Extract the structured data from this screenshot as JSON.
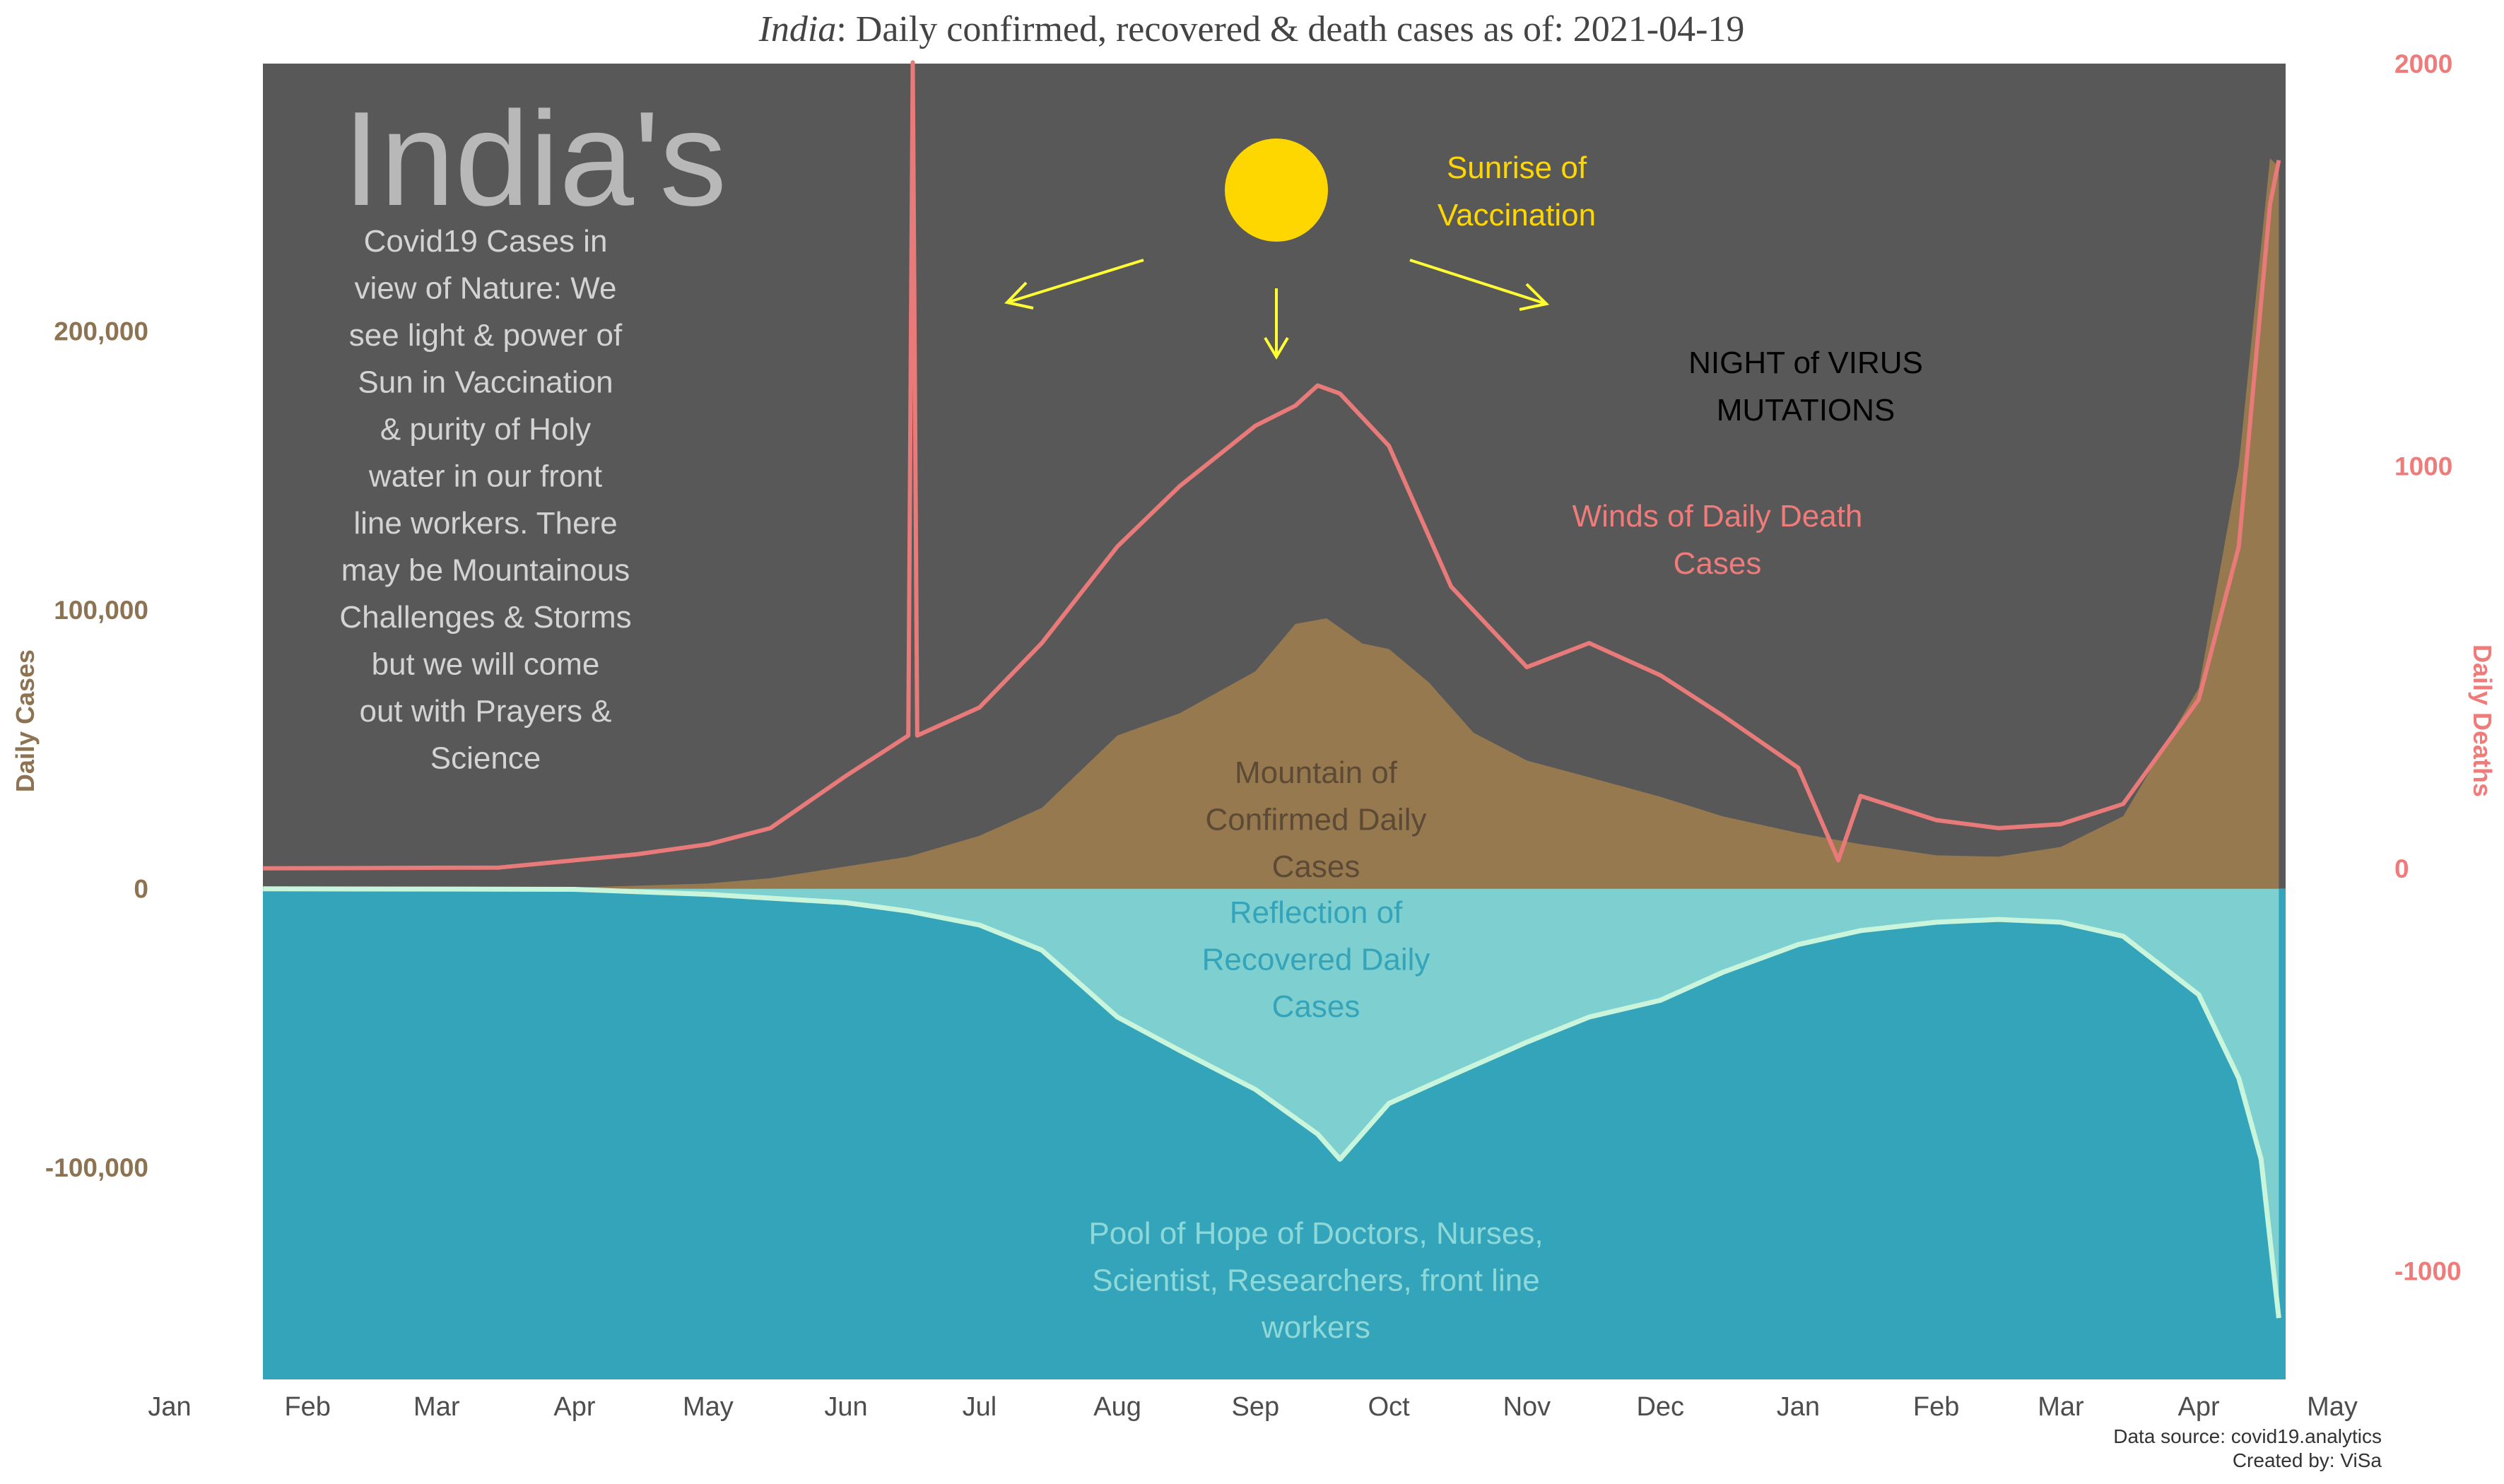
{
  "title": {
    "country": "India",
    "rest": ": Daily confirmed, recovered & death cases as of: 2021-04-19"
  },
  "chart_data": {
    "type": "area",
    "title": "India: Daily confirmed, recovered & death cases as of: 2021-04-19",
    "ylabel": "Daily Cases",
    "ylabel_right": "Daily Deaths",
    "y_ticks": [
      "200,000",
      "100,000",
      "0",
      "-100,000"
    ],
    "y_tick_values": [
      200000,
      100000,
      0,
      -100000
    ],
    "y2_ticks": [
      "2000",
      "1000",
      "0",
      "-1000"
    ],
    "y2_tick_values": [
      2000,
      1000,
      0,
      -1000
    ],
    "x_ticks": [
      "Jan",
      "Feb",
      "Mar",
      "Apr",
      "May",
      "Jun",
      "Jul",
      "Aug",
      "Sep",
      "Oct",
      "Nov",
      "Dec",
      "Jan",
      "Feb",
      "Mar",
      "Apr",
      "May"
    ],
    "x_tick_dates": [
      "2020-01-01",
      "2020-02-01",
      "2020-03-01",
      "2020-04-01",
      "2020-05-01",
      "2020-06-01",
      "2020-07-01",
      "2020-08-01",
      "2020-09-01",
      "2020-10-01",
      "2020-11-01",
      "2020-12-01",
      "2021-01-01",
      "2021-02-01",
      "2021-03-01",
      "2021-04-01",
      "2021-05-01"
    ],
    "x_range": [
      "2020-01-01",
      "2021-05-01"
    ],
    "ylim": [
      -176000,
      296000
    ],
    "y2lim": [
      -1270,
      2000
    ],
    "series": [
      {
        "name": "Confirmed",
        "axis": "left",
        "color": "#97794f",
        "points": [
          [
            "2020-01-22",
            0
          ],
          [
            "2020-03-01",
            0
          ],
          [
            "2020-04-01",
            500
          ],
          [
            "2020-04-15",
            1100
          ],
          [
            "2020-05-01",
            1900
          ],
          [
            "2020-05-15",
            3800
          ],
          [
            "2020-06-01",
            8000
          ],
          [
            "2020-06-15",
            11500
          ],
          [
            "2020-07-01",
            19000
          ],
          [
            "2020-07-15",
            29000
          ],
          [
            "2020-08-01",
            55000
          ],
          [
            "2020-08-15",
            63000
          ],
          [
            "2020-09-01",
            78000
          ],
          [
            "2020-09-10",
            95000
          ],
          [
            "2020-09-17",
            97000
          ],
          [
            "2020-09-25",
            88000
          ],
          [
            "2020-10-01",
            86000
          ],
          [
            "2020-10-10",
            74000
          ],
          [
            "2020-10-20",
            56000
          ],
          [
            "2020-11-01",
            46000
          ],
          [
            "2020-11-15",
            40000
          ],
          [
            "2020-12-01",
            33000
          ],
          [
            "2020-12-15",
            26000
          ],
          [
            "2021-01-01",
            20000
          ],
          [
            "2021-01-15",
            16000
          ],
          [
            "2021-02-01",
            12000
          ],
          [
            "2021-02-15",
            11500
          ],
          [
            "2021-03-01",
            15000
          ],
          [
            "2021-03-15",
            26000
          ],
          [
            "2021-04-01",
            72000
          ],
          [
            "2021-04-10",
            152000
          ],
          [
            "2021-04-17",
            262000
          ],
          [
            "2021-04-19",
            259000
          ]
        ]
      },
      {
        "name": "Recovered",
        "axis": "left",
        "color": "#7ecfcf",
        "points": [
          [
            "2020-01-22",
            0
          ],
          [
            "2020-04-01",
            -200
          ],
          [
            "2020-05-01",
            -2000
          ],
          [
            "2020-06-01",
            -5000
          ],
          [
            "2020-06-15",
            -8000
          ],
          [
            "2020-07-01",
            -13000
          ],
          [
            "2020-07-15",
            -22000
          ],
          [
            "2020-08-01",
            -46000
          ],
          [
            "2020-08-15",
            -58000
          ],
          [
            "2020-09-01",
            -72000
          ],
          [
            "2020-09-15",
            -88000
          ],
          [
            "2020-09-20",
            -97000
          ],
          [
            "2020-10-01",
            -77000
          ],
          [
            "2020-10-15",
            -67000
          ],
          [
            "2020-11-01",
            -55000
          ],
          [
            "2020-11-15",
            -46000
          ],
          [
            "2020-12-01",
            -40000
          ],
          [
            "2020-12-15",
            -30000
          ],
          [
            "2021-01-01",
            -20000
          ],
          [
            "2021-01-15",
            -15000
          ],
          [
            "2021-02-01",
            -12000
          ],
          [
            "2021-02-15",
            -11000
          ],
          [
            "2021-03-01",
            -12000
          ],
          [
            "2021-03-15",
            -17000
          ],
          [
            "2021-04-01",
            -38000
          ],
          [
            "2021-04-10",
            -68000
          ],
          [
            "2021-04-15",
            -97000
          ],
          [
            "2021-04-19",
            -154000
          ]
        ]
      },
      {
        "name": "Deaths",
        "axis": "right",
        "color": "#e87a7a",
        "points": [
          [
            "2020-01-22",
            0
          ],
          [
            "2020-03-15",
            2
          ],
          [
            "2020-04-01",
            20
          ],
          [
            "2020-04-15",
            35
          ],
          [
            "2020-05-01",
            60
          ],
          [
            "2020-05-15",
            100
          ],
          [
            "2020-06-01",
            230
          ],
          [
            "2020-06-15",
            330
          ],
          [
            "2020-06-16",
            2003
          ],
          [
            "2020-06-17",
            330
          ],
          [
            "2020-07-01",
            400
          ],
          [
            "2020-07-15",
            560
          ],
          [
            "2020-08-01",
            800
          ],
          [
            "2020-08-15",
            950
          ],
          [
            "2020-09-01",
            1100
          ],
          [
            "2020-09-10",
            1150
          ],
          [
            "2020-09-15",
            1200
          ],
          [
            "2020-09-20",
            1180
          ],
          [
            "2020-10-01",
            1050
          ],
          [
            "2020-10-15",
            700
          ],
          [
            "2020-11-01",
            500
          ],
          [
            "2020-11-15",
            560
          ],
          [
            "2020-12-01",
            480
          ],
          [
            "2020-12-15",
            380
          ],
          [
            "2021-01-01",
            250
          ],
          [
            "2021-01-10",
            20
          ],
          [
            "2021-01-15",
            180
          ],
          [
            "2021-02-01",
            120
          ],
          [
            "2021-02-15",
            100
          ],
          [
            "2021-03-01",
            110
          ],
          [
            "2021-03-15",
            160
          ],
          [
            "2021-04-01",
            420
          ],
          [
            "2021-04-10",
            800
          ],
          [
            "2021-04-17",
            1650
          ],
          [
            "2021-04-19",
            1760
          ]
        ]
      }
    ],
    "annotations": {
      "big_title": "India's",
      "left_text": [
        "Covid19 Cases in",
        "view of Nature: We",
        "see light & power of",
        "Sun in Vaccination",
        "& purity of Holy",
        "water in our front",
        "line workers. There",
        "may be Mountainous",
        "Challenges & Storms",
        "but we will come",
        "out with Prayers &",
        "Science"
      ],
      "sunrise": [
        "Sunrise of",
        "Vaccination"
      ],
      "night": [
        "NIGHT of VIRUS",
        "MUTATIONS"
      ],
      "winds": [
        "Winds of Daily Death",
        "Cases"
      ],
      "mountain": [
        "Mountain of",
        "Confirmed Daily",
        "Cases"
      ],
      "reflection": [
        "Reflection of",
        "Recovered Daily",
        "Cases"
      ],
      "pool": [
        "Pool of Hope of Doctors, Nurses,",
        "Scientist, Researchers, front line",
        "workers"
      ]
    },
    "colors": {
      "sky": "#585858",
      "pool": "#34a4bb",
      "confirmed": "#97794f",
      "recovered_fill": "#7ecfcf",
      "recovered_line": "#c8f5dc",
      "deaths": "#e87a7a",
      "sun": "#ffd700",
      "arrow": "#ffff33"
    }
  },
  "footer": {
    "source": "Data source: covid19.analytics",
    "credit": "Created by: ViSa"
  }
}
